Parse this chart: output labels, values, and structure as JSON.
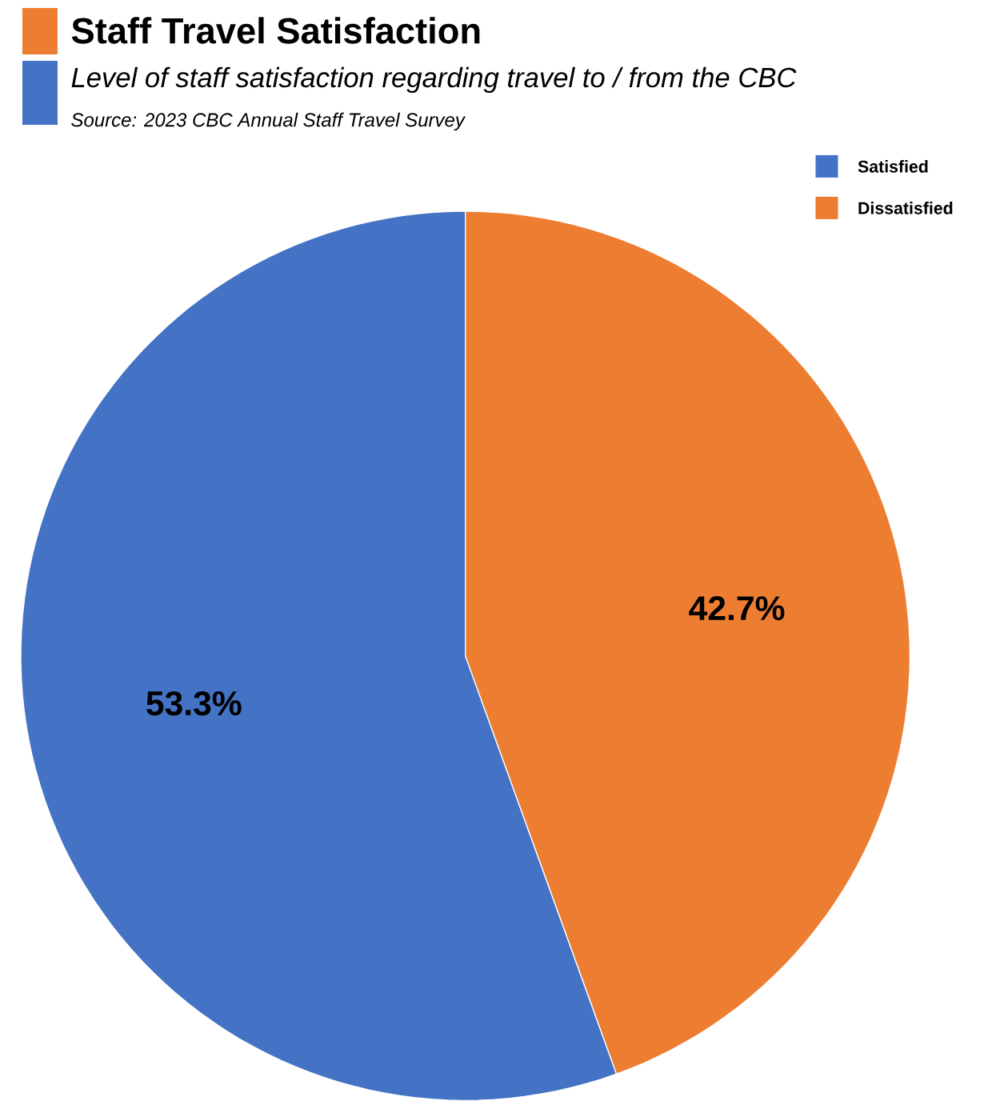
{
  "chart_data": {
    "type": "pie",
    "title": "Staff Travel Satisfaction",
    "subtitle": "Level of staff satisfaction regarding travel to / from the CBC",
    "annotations": [
      "Source: 2023 CBC Annual Staff Travel Survey"
    ],
    "categories": [
      "Satisfied",
      "Dissatisfied"
    ],
    "values": [
      53.3,
      42.7
    ],
    "colors": [
      "#4472c4",
      "#ed7d31"
    ],
    "value_labels": [
      "53.3%",
      "42.7%"
    ],
    "legend": "top right"
  }
}
